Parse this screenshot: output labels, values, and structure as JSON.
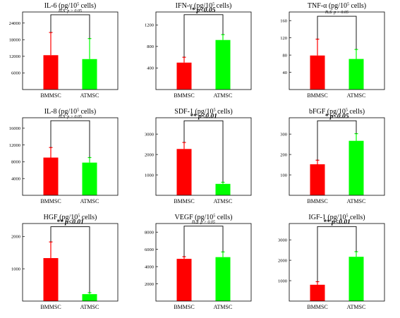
{
  "colors": {
    "BMMSC": "#ff0000",
    "ATMSC": "#00ff00",
    "axis": "#000000"
  },
  "chart_data": [
    {
      "type": "bar",
      "title_main": "IL-6",
      "title_unit_pre": " (pg/10",
      "title_sup": "5",
      "title_unit_post": " cells)",
      "categories": [
        "BMMSC",
        "ATMSC"
      ],
      "values": [
        12400,
        11000
      ],
      "errors": [
        8200,
        7400
      ],
      "ylim": [
        0,
        28000
      ],
      "ticks": [
        6000,
        12000,
        18000,
        24000
      ],
      "tick_labels": [
        "6000",
        "12000",
        "18000",
        "24000"
      ],
      "sig_main": "n.s",
      "sig_sub": "p > 0.05",
      "sig_style": "ns",
      "bracket_y": 27000
    },
    {
      "type": "bar",
      "title_main": "IFN-γ",
      "title_unit_pre": " (pg/10",
      "title_sup": "5",
      "title_unit_post": " cells)",
      "categories": [
        "BMMSC",
        "ATMSC"
      ],
      "values": [
        500,
        920
      ],
      "errors": [
        100,
        100
      ],
      "ylim": [
        0,
        1440
      ],
      "ticks": [
        400,
        800,
        1200
      ],
      "tick_labels": [
        "400",
        "800",
        "1200"
      ],
      "sig_main": "* p<0.05",
      "sig_sub": "",
      "sig_style": "sig",
      "bracket_y": 1390
    },
    {
      "type": "bar",
      "title_main": "TNF-α",
      "title_unit_pre": " (pg/10",
      "title_sup": "5",
      "title_unit_post": " cells)",
      "categories": [
        "BMMSC",
        "ATMSC"
      ],
      "values": [
        79,
        71
      ],
      "errors": [
        38,
        22
      ],
      "ylim": [
        0,
        180
      ],
      "ticks": [
        40,
        80,
        120,
        160
      ],
      "tick_labels": [
        "40",
        "80",
        "120",
        "160"
      ],
      "sig_main": "n.s",
      "sig_sub": "p > 0.05",
      "sig_style": "ns",
      "bracket_y": 170
    },
    {
      "type": "bar",
      "title_main": "IL-8",
      "title_unit_pre": " (pg/10",
      "title_sup": "5",
      "title_unit_post": " cells)",
      "categories": [
        "BMMSC",
        "ATMSC"
      ],
      "values": [
        9000,
        7800
      ],
      "errors": [
        2400,
        1200
      ],
      "ylim": [
        0,
        18500
      ],
      "ticks": [
        4000,
        8000,
        12000,
        16000
      ],
      "tick_labels": [
        "4000",
        "8000",
        "12000",
        "16000"
      ],
      "sig_main": "n.s",
      "sig_sub": "p > 0.05",
      "sig_style": "ns",
      "bracket_y": 17800
    },
    {
      "type": "bar",
      "title_main": "SDF-1",
      "title_unit_pre": " (pg/10",
      "title_sup": "5",
      "title_unit_post": " cells)",
      "categories": [
        "BMMSC",
        "ATMSC"
      ],
      "values": [
        2270,
        560
      ],
      "errors": [
        320,
        80
      ],
      "ylim": [
        0,
        3800
      ],
      "ticks": [
        1000,
        2000,
        3000
      ],
      "tick_labels": [
        "1000",
        "2000",
        "3000"
      ],
      "sig_main": "** p<0.01",
      "sig_sub": "",
      "sig_style": "sig",
      "bracket_y": 3650
    },
    {
      "type": "bar",
      "title_main": "bFGF",
      "title_unit_pre": " (pg/10",
      "title_sup": "5",
      "title_unit_post": " cells)",
      "categories": [
        "BMMSC",
        "ATMSC"
      ],
      "values": [
        152,
        267
      ],
      "errors": [
        20,
        35
      ],
      "ylim": [
        0,
        380
      ],
      "ticks": [
        100,
        200,
        300
      ],
      "tick_labels": [
        "100",
        "200",
        "300"
      ],
      "sig_main": "* p<0.05",
      "sig_sub": "",
      "sig_style": "sig",
      "bracket_y": 365
    },
    {
      "type": "bar",
      "title_main": "HGF",
      "title_unit_pre": " (pg/10",
      "title_sup": "5",
      "title_unit_post": " cells)",
      "categories": [
        "BMMSC",
        "ATMSC"
      ],
      "values": [
        1330,
        215
      ],
      "errors": [
        500,
        45
      ],
      "ylim": [
        0,
        2400
      ],
      "ticks": [
        1000,
        2000
      ],
      "tick_labels": [
        "1000",
        "2000"
      ],
      "sig_main": "** p<0.01",
      "sig_sub": "",
      "sig_style": "sig",
      "bracket_y": 2300
    },
    {
      "type": "bar",
      "title_main": "VEGF",
      "title_unit_pre": " (pg/10",
      "title_sup": "5",
      "title_unit_post": " cells)",
      "categories": [
        "BMMSC",
        "ATMSC"
      ],
      "values": [
        4900,
        5100
      ],
      "errors": [
        250,
        600
      ],
      "ylim": [
        0,
        9000
      ],
      "ticks": [
        2000,
        4000,
        6000,
        8000
      ],
      "tick_labels": [
        "2000",
        "4000",
        "6000",
        "8000"
      ],
      "sig_main": "n.s",
      "sig_sub": "p > 0.05",
      "sig_style": "ns",
      "bracket_y": 8700
    },
    {
      "type": "bar",
      "title_main": "IGF-1",
      "title_unit_pre": " (pg/10",
      "title_sup": "5",
      "title_unit_post": " cells)",
      "categories": [
        "BMMSC",
        "ATMSC"
      ],
      "values": [
        800,
        2170
      ],
      "errors": [
        150,
        250
      ],
      "ylim": [
        0,
        3800
      ],
      "ticks": [
        1000,
        2000,
        3000
      ],
      "tick_labels": [
        "1000",
        "2000",
        "3000"
      ],
      "sig_main": "** p<0.01",
      "sig_sub": "",
      "sig_style": "sig",
      "bracket_y": 3650
    }
  ]
}
